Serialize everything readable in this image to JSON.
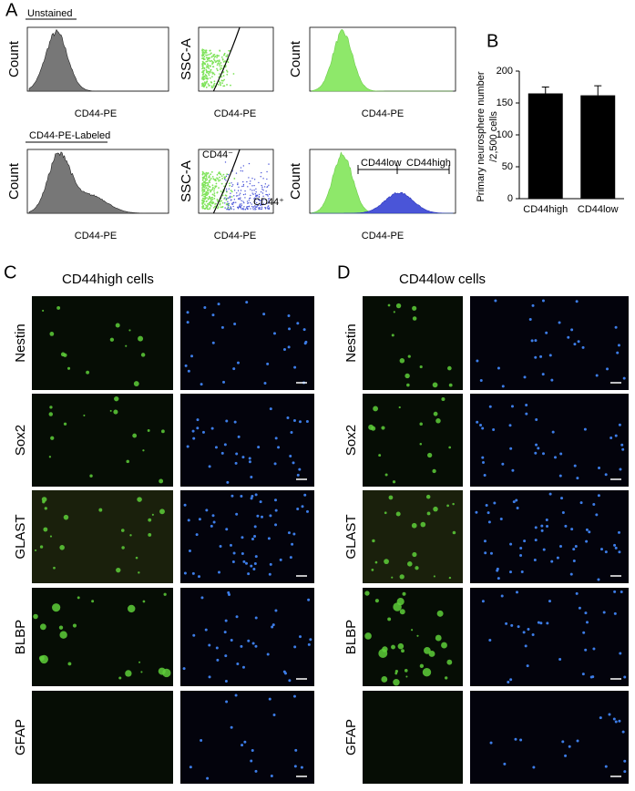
{
  "panel_a": {
    "label": "A",
    "unstained": "Unstained",
    "labeled": "CD44-PE-Labeled",
    "count": "Count",
    "ssc": "SSC-A",
    "x_label": "CD44-PE",
    "cd44_neg": "CD44⁻",
    "cd44_pos": "CD44⁺",
    "gate_low": "CD44low",
    "gate_high": "CD44high"
  },
  "chart_data": {
    "type": "bar",
    "label": "B",
    "y_label": [
      "Primary neurosphere number",
      "/2,500 cells"
    ],
    "categories": [
      "CD44high",
      "CD44low"
    ],
    "values": [
      165,
      162
    ],
    "errors": [
      10,
      15
    ],
    "color": "#000000",
    "ylim": [
      0,
      200
    ],
    "yticks": [
      0,
      50,
      100,
      150,
      200
    ]
  },
  "panel_c": {
    "label": "C",
    "title": "CD44high cells",
    "rows": [
      "Nestin",
      "Sox2",
      "GLAST",
      "BLBP",
      "GFAP"
    ]
  },
  "panel_d": {
    "label": "D",
    "title": "CD44low cells",
    "rows": [
      "Nestin",
      "Sox2",
      "GLAST",
      "BLBP",
      "GFAP"
    ]
  }
}
